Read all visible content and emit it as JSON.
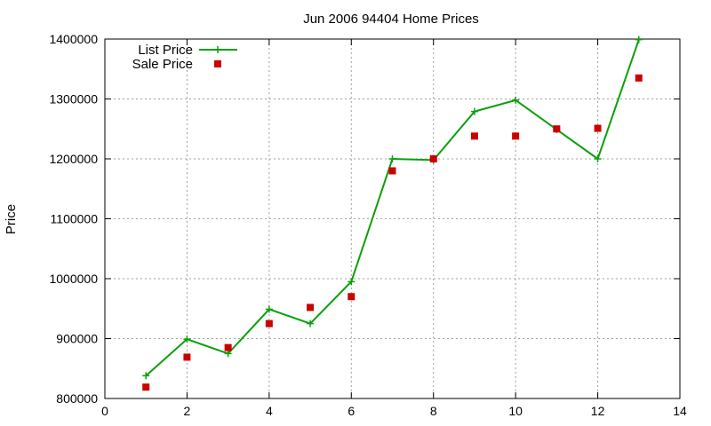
{
  "chart_data": {
    "type": "line",
    "title": "Jun 2006 94404 Home Prices",
    "xlabel": "",
    "ylabel": "Price",
    "xlim": [
      0,
      14
    ],
    "ylim": [
      800000,
      1400000
    ],
    "xticks": [
      0,
      2,
      4,
      6,
      8,
      10,
      12,
      14
    ],
    "yticks": [
      800000,
      900000,
      1000000,
      1100000,
      1200000,
      1300000,
      1400000
    ],
    "x_tick_labels": [
      "0",
      "2",
      "4",
      "6",
      "8",
      "10",
      "12",
      "14"
    ],
    "y_tick_labels": [
      "800000",
      "900000",
      "1000000",
      "1100000",
      "1200000",
      "1300000",
      "1400000"
    ],
    "grid": true,
    "legend_position": "top-left",
    "series": [
      {
        "name": "List Price",
        "style": "line-with-plus-markers",
        "color": "#0aa00a",
        "x": [
          1,
          2,
          3,
          4,
          5,
          6,
          7,
          8,
          9,
          10,
          11,
          12,
          13
        ],
        "y": [
          838000,
          899000,
          875000,
          949000,
          925000,
          995000,
          1200000,
          1198000,
          1279000,
          1298000,
          1249000,
          1200000,
          1399000
        ]
      },
      {
        "name": "Sale Price",
        "style": "square-points",
        "color": "#cc0000",
        "x": [
          1,
          2,
          3,
          4,
          5,
          6,
          7,
          8,
          9,
          10,
          11,
          12,
          13
        ],
        "y": [
          819000,
          869000,
          885000,
          925000,
          952000,
          970000,
          1180000,
          1200000,
          1238000,
          1238000,
          1250000,
          1251000,
          1335000
        ]
      }
    ]
  }
}
